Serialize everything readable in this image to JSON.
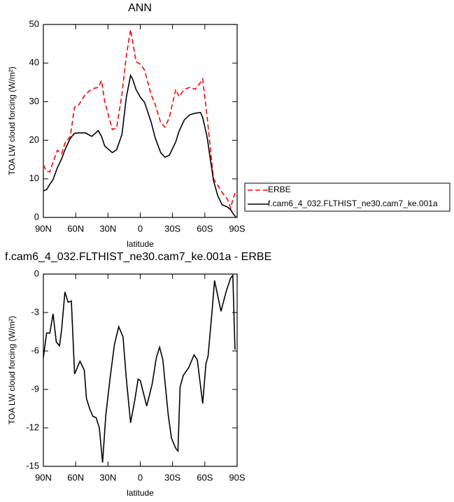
{
  "chart_data": [
    {
      "type": "line",
      "title": "ANN",
      "x_label": "latitude",
      "y_label": "TOA LW cloud forcing (W/m²)",
      "x": [
        90,
        87,
        84,
        81,
        77,
        73,
        70,
        65,
        61,
        58,
        51,
        45,
        39,
        36,
        33,
        26,
        22,
        17,
        13,
        9,
        7,
        4,
        0,
        -4,
        -10,
        -14,
        -19,
        -23,
        -27,
        -33,
        -36,
        -41,
        -46,
        -51,
        -56,
        -58,
        -62,
        -68,
        -72,
        -76,
        -81,
        -84,
        -86,
        -89
      ],
      "xlim": [
        90,
        -90
      ],
      "xticks": [
        {
          "value": 90,
          "label": "90N"
        },
        {
          "value": 60,
          "label": "60N"
        },
        {
          "value": 30,
          "label": "30N"
        },
        0,
        {
          "value": -30,
          "label": "30S"
        },
        {
          "value": -60,
          "label": "60S"
        },
        {
          "value": -90,
          "label": "90S"
        }
      ],
      "ylim": [
        0,
        50
      ],
      "yticks": [
        0,
        10,
        20,
        30,
        40,
        50
      ],
      "legend": "right",
      "series": [
        {
          "name": "ERBE",
          "color": "#ff0000",
          "line_style": "dashed",
          "values": [
            13.6,
            12,
            11.8,
            14.3,
            17.4,
            16.5,
            19.2,
            21,
            28.6,
            28.8,
            31.9,
            33.3,
            33.7,
            35.5,
            30,
            22.8,
            23.2,
            31.9,
            41.8,
            48.7,
            45.5,
            40.4,
            39.7,
            38.2,
            31.9,
            29.2,
            24.6,
            23.4,
            25.9,
            33.2,
            31.3,
            33.2,
            33.7,
            33.2,
            35,
            35.9,
            26.4,
            10.1,
            8.3,
            6.5,
            4.7,
            2.4,
            4.7,
            7.1
          ]
        },
        {
          "name": "f.cam6_4_032.FLTHIST_ne30.cam7_ke.001a",
          "color": "#000000",
          "line_style": "solid",
          "values": [
            6.9,
            7.2,
            8.6,
            9.8,
            12.9,
            15.2,
            17.5,
            20.5,
            21.8,
            21.9,
            21.9,
            21,
            22.5,
            21,
            18.5,
            16.8,
            17.5,
            21.5,
            31,
            36.8,
            35.8,
            33.2,
            31.2,
            29.8,
            24.8,
            20.5,
            16.8,
            15.6,
            16.1,
            19.6,
            22.3,
            25.3,
            26.6,
            27,
            27.2,
            25.9,
            21,
            9.6,
            5.6,
            3.3,
            2.7,
            2,
            1.1,
            0
          ]
        }
      ]
    },
    {
      "type": "line",
      "title": "f.cam6_4_032.FLTHIST_ne30.cam7_ke.001a - ERBE",
      "x_label": "latitude",
      "y_label": "TOA LW cloud forcing (W/m²)",
      "x": [
        90,
        87,
        84,
        81,
        78,
        75,
        73,
        70,
        67,
        64,
        61,
        56,
        52,
        50,
        47,
        44,
        41,
        38,
        35,
        32,
        28,
        24,
        20,
        16,
        13,
        9,
        5,
        2,
        0,
        -6,
        -11,
        -15,
        -18,
        -21,
        -26,
        -29,
        -33,
        -35,
        -37,
        -40,
        -45,
        -50,
        -53,
        -58,
        -61,
        -63,
        -67,
        -69,
        -75,
        -80,
        -84,
        -86,
        -88
      ],
      "xlim": [
        90,
        -90
      ],
      "xticks": [
        {
          "value": 90,
          "label": "90N"
        },
        {
          "value": 60,
          "label": "60N"
        },
        {
          "value": 30,
          "label": "30N"
        },
        0,
        {
          "value": -30,
          "label": "30S"
        },
        {
          "value": -60,
          "label": "60S"
        },
        {
          "value": -90,
          "label": "90S"
        }
      ],
      "ylim": [
        -15,
        0
      ],
      "yticks": [
        0,
        -3,
        -6,
        -9,
        -12,
        -15
      ],
      "series": [
        {
          "color": "#000000",
          "line_style": "solid",
          "values": [
            -6.5,
            -4.6,
            -4.6,
            -3.1,
            -5.3,
            -5.6,
            -4.3,
            -1.4,
            -2.2,
            -2.1,
            -7.8,
            -6.8,
            -7.5,
            -9.7,
            -10.5,
            -11.1,
            -11.2,
            -12,
            -14.7,
            -11,
            -8.1,
            -5.5,
            -4.1,
            -4.9,
            -8.1,
            -11.6,
            -9.8,
            -8.2,
            -8.3,
            -10.3,
            -8.6,
            -6.5,
            -5.7,
            -6.7,
            -11,
            -12.8,
            -13.6,
            -13.8,
            -8.8,
            -7.9,
            -7.3,
            -6.3,
            -6.7,
            -10.1,
            -7,
            -6.4,
            -2.6,
            -0.5,
            -2.9,
            -1.3,
            -0.3,
            -0.1,
            -5.9
          ]
        }
      ]
    }
  ]
}
